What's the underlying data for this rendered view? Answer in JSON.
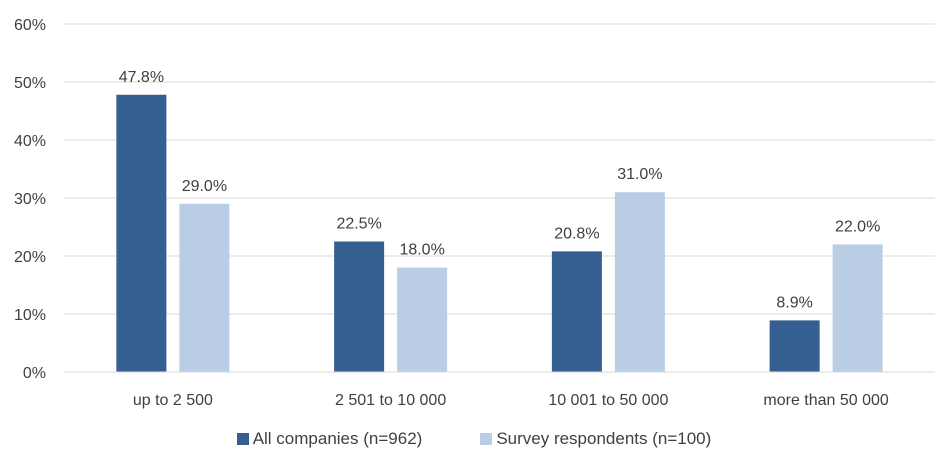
{
  "chart_data": {
    "type": "bar",
    "title": "",
    "xlabel": "",
    "ylabel": "",
    "ylim": [
      0,
      60
    ],
    "yticks": [
      0,
      10,
      20,
      30,
      40,
      50,
      60
    ],
    "ytick_labels": [
      "0%",
      "10%",
      "20%",
      "30%",
      "40%",
      "50%",
      "60%"
    ],
    "grid": true,
    "legend_position": "bottom",
    "categories": [
      "up to 2 500",
      "2 501 to 10 000",
      "10 001 to 50 000",
      "more than 50 000"
    ],
    "series": [
      {
        "name": "All companies (n=962)",
        "color": "#355F91",
        "values": [
          47.8,
          22.5,
          20.8,
          8.9
        ],
        "labels": [
          "47.8%",
          "22.5%",
          "20.8%",
          "8.9%"
        ]
      },
      {
        "name": "Survey respondents (n=100)",
        "color": "#B9CDE5",
        "values": [
          29.0,
          18.0,
          31.0,
          22.0
        ],
        "labels": [
          "29.0%",
          "18.0%",
          "31.0%",
          "22.0%"
        ]
      }
    ]
  }
}
